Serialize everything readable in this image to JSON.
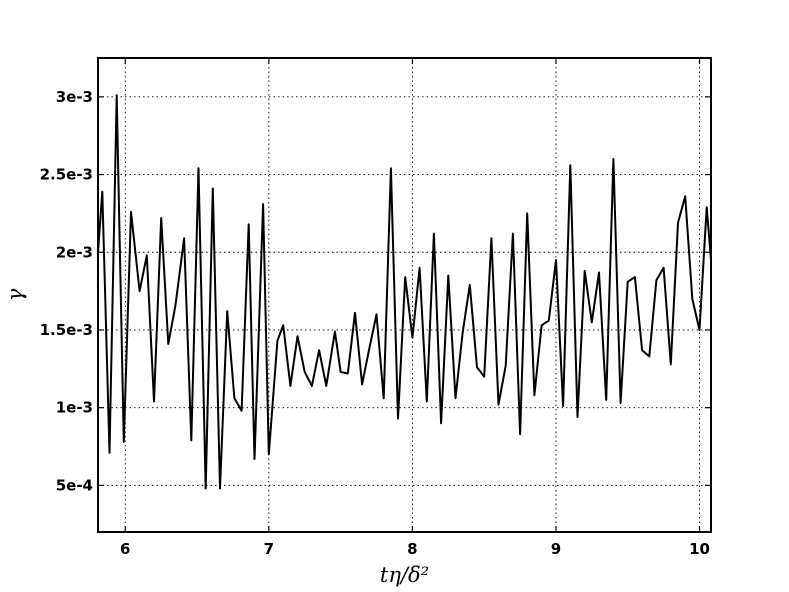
{
  "chart_data": {
    "type": "line",
    "title": "",
    "xlabel": "tη/δ²",
    "ylabel": "γ",
    "xlim": [
      5.81,
      10.08
    ],
    "ylim": [
      0.0002,
      0.00325
    ],
    "xticks": [
      6,
      7,
      8,
      9,
      10
    ],
    "xtick_labels": [
      "6",
      "7",
      "8",
      "9",
      "10"
    ],
    "yticks": [
      0.0005,
      0.001,
      0.0015,
      0.002,
      0.0025,
      0.003
    ],
    "ytick_labels": [
      "5e-4",
      "1e-3",
      "1.5e-3",
      "2e-3",
      "2.5e-3",
      "3e-3"
    ],
    "grid": true,
    "line_color": "#000000",
    "series": [
      {
        "x": [
          5.81,
          5.84,
          5.89,
          5.94,
          5.99,
          6.04,
          6.1,
          6.15,
          6.2,
          6.25,
          6.3,
          6.35,
          6.41,
          6.46,
          6.51,
          6.56,
          6.61,
          6.66,
          6.71,
          6.76,
          6.81,
          6.86,
          6.9,
          6.96,
          7.0,
          7.06,
          7.1,
          7.15,
          7.2,
          7.25,
          7.3,
          7.35,
          7.4,
          7.46,
          7.5,
          7.55,
          7.6,
          7.65,
          7.7,
          7.75,
          7.8,
          7.85,
          7.9,
          7.95,
          8.0,
          8.05,
          8.1,
          8.15,
          8.2,
          8.25,
          8.3,
          8.35,
          8.4,
          8.45,
          8.5,
          8.55,
          8.6,
          8.65,
          8.7,
          8.75,
          8.8,
          8.85,
          8.9,
          8.95,
          9.0,
          9.05,
          9.1,
          9.15,
          9.2,
          9.25,
          9.3,
          9.35,
          9.4,
          9.45,
          9.5,
          9.55,
          9.6,
          9.65,
          9.7,
          9.75,
          9.8,
          9.85,
          9.9,
          9.95,
          10.0,
          10.05,
          10.08
        ],
        "y": [
          0.002,
          0.00239,
          0.00071,
          0.00301,
          0.00078,
          0.00226,
          0.00175,
          0.00198,
          0.00104,
          0.00222,
          0.00141,
          0.00166,
          0.00209,
          0.00079,
          0.00254,
          0.00048,
          0.00241,
          0.00048,
          0.00162,
          0.00106,
          0.00098,
          0.00218,
          0.00067,
          0.00231,
          0.0007,
          0.00143,
          0.00153,
          0.00114,
          0.00146,
          0.00123,
          0.00114,
          0.00137,
          0.00114,
          0.00149,
          0.00123,
          0.00122,
          0.00161,
          0.00115,
          0.00138,
          0.0016,
          0.00106,
          0.00254,
          0.00093,
          0.00184,
          0.00145,
          0.0019,
          0.00104,
          0.00212,
          0.0009,
          0.00185,
          0.00106,
          0.00148,
          0.00179,
          0.00126,
          0.0012,
          0.00209,
          0.00102,
          0.00127,
          0.00212,
          0.00083,
          0.00225,
          0.00108,
          0.00153,
          0.00156,
          0.00195,
          0.00101,
          0.00256,
          0.00094,
          0.00188,
          0.00155,
          0.00187,
          0.00105,
          0.0026,
          0.00103,
          0.00181,
          0.00184,
          0.00137,
          0.00133,
          0.00182,
          0.0019,
          0.00128,
          0.00219,
          0.00236,
          0.0017,
          0.0015,
          0.00229,
          0.00195
        ]
      }
    ]
  }
}
